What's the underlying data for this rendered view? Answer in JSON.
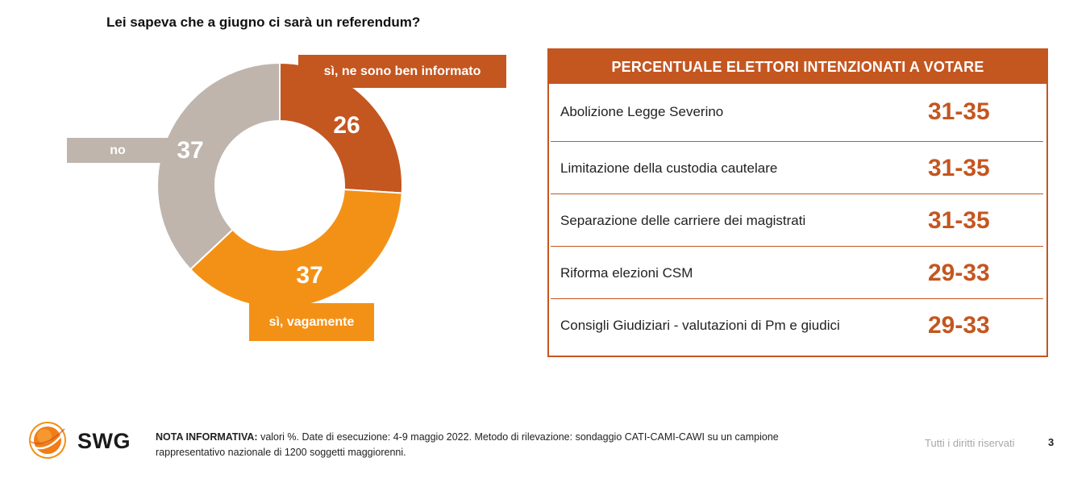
{
  "header": {
    "title": "Lei sapeva che a giugno ci sarà un referendum?"
  },
  "chart_data": {
    "type": "pie",
    "variant": "donut",
    "categories": [
      "sì, ne sono ben informato",
      "sì, vagamente",
      "no"
    ],
    "values": [
      26,
      37,
      37
    ],
    "colors": [
      "#c45620",
      "#f39117",
      "#bfb5ad"
    ],
    "unit": "%"
  },
  "table": {
    "header": "PERCENTUALE ELETTORI INTENZIONATI A VOTARE",
    "rows": [
      {
        "label": "Abolizione Legge Severino",
        "value": "31-35"
      },
      {
        "label": "Limitazione della custodia cautelare",
        "value": "31-35"
      },
      {
        "label": "Separazione delle carriere dei magistrati",
        "value": "31-35"
      },
      {
        "label": "Riforma elezioni CSM",
        "value": "29-33"
      },
      {
        "label": "Consigli Giudiziari - valutazioni di Pm e giudici",
        "value": "29-33"
      }
    ],
    "accent_color": "#c45620"
  },
  "footer": {
    "brand": "SWG",
    "note_label": "NOTA INFORMATIVA:",
    "note_text": " valori %. Date di esecuzione: 4-9 maggio 2022. Metodo di rilevazione: sondaggio CATI-CAMI-CAWI su un campione rappresentativo nazionale di 1200 soggetti maggiorenni.",
    "rights": "Tutti i diritti riservati",
    "page_number": "3",
    "logo_icon": "swg-globe-logo-icon"
  }
}
